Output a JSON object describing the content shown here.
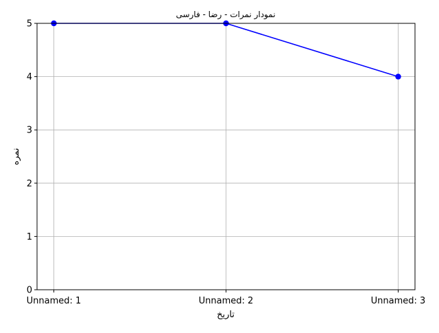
{
  "chart_data": {
    "type": "line",
    "title": "نمودار نمرات - رضا - فارسی",
    "xlabel": "تاریخ",
    "ylabel": "نمره",
    "categories": [
      "Unnamed: 1",
      "Unnamed: 2",
      "Unnamed: 3"
    ],
    "series": [
      {
        "values": [
          5,
          5,
          4
        ],
        "color": "#0000ff",
        "marker": "circle"
      }
    ],
    "ylim": [
      0,
      5
    ],
    "yticks": [
      0,
      1,
      2,
      3,
      4,
      5
    ],
    "grid": true
  }
}
